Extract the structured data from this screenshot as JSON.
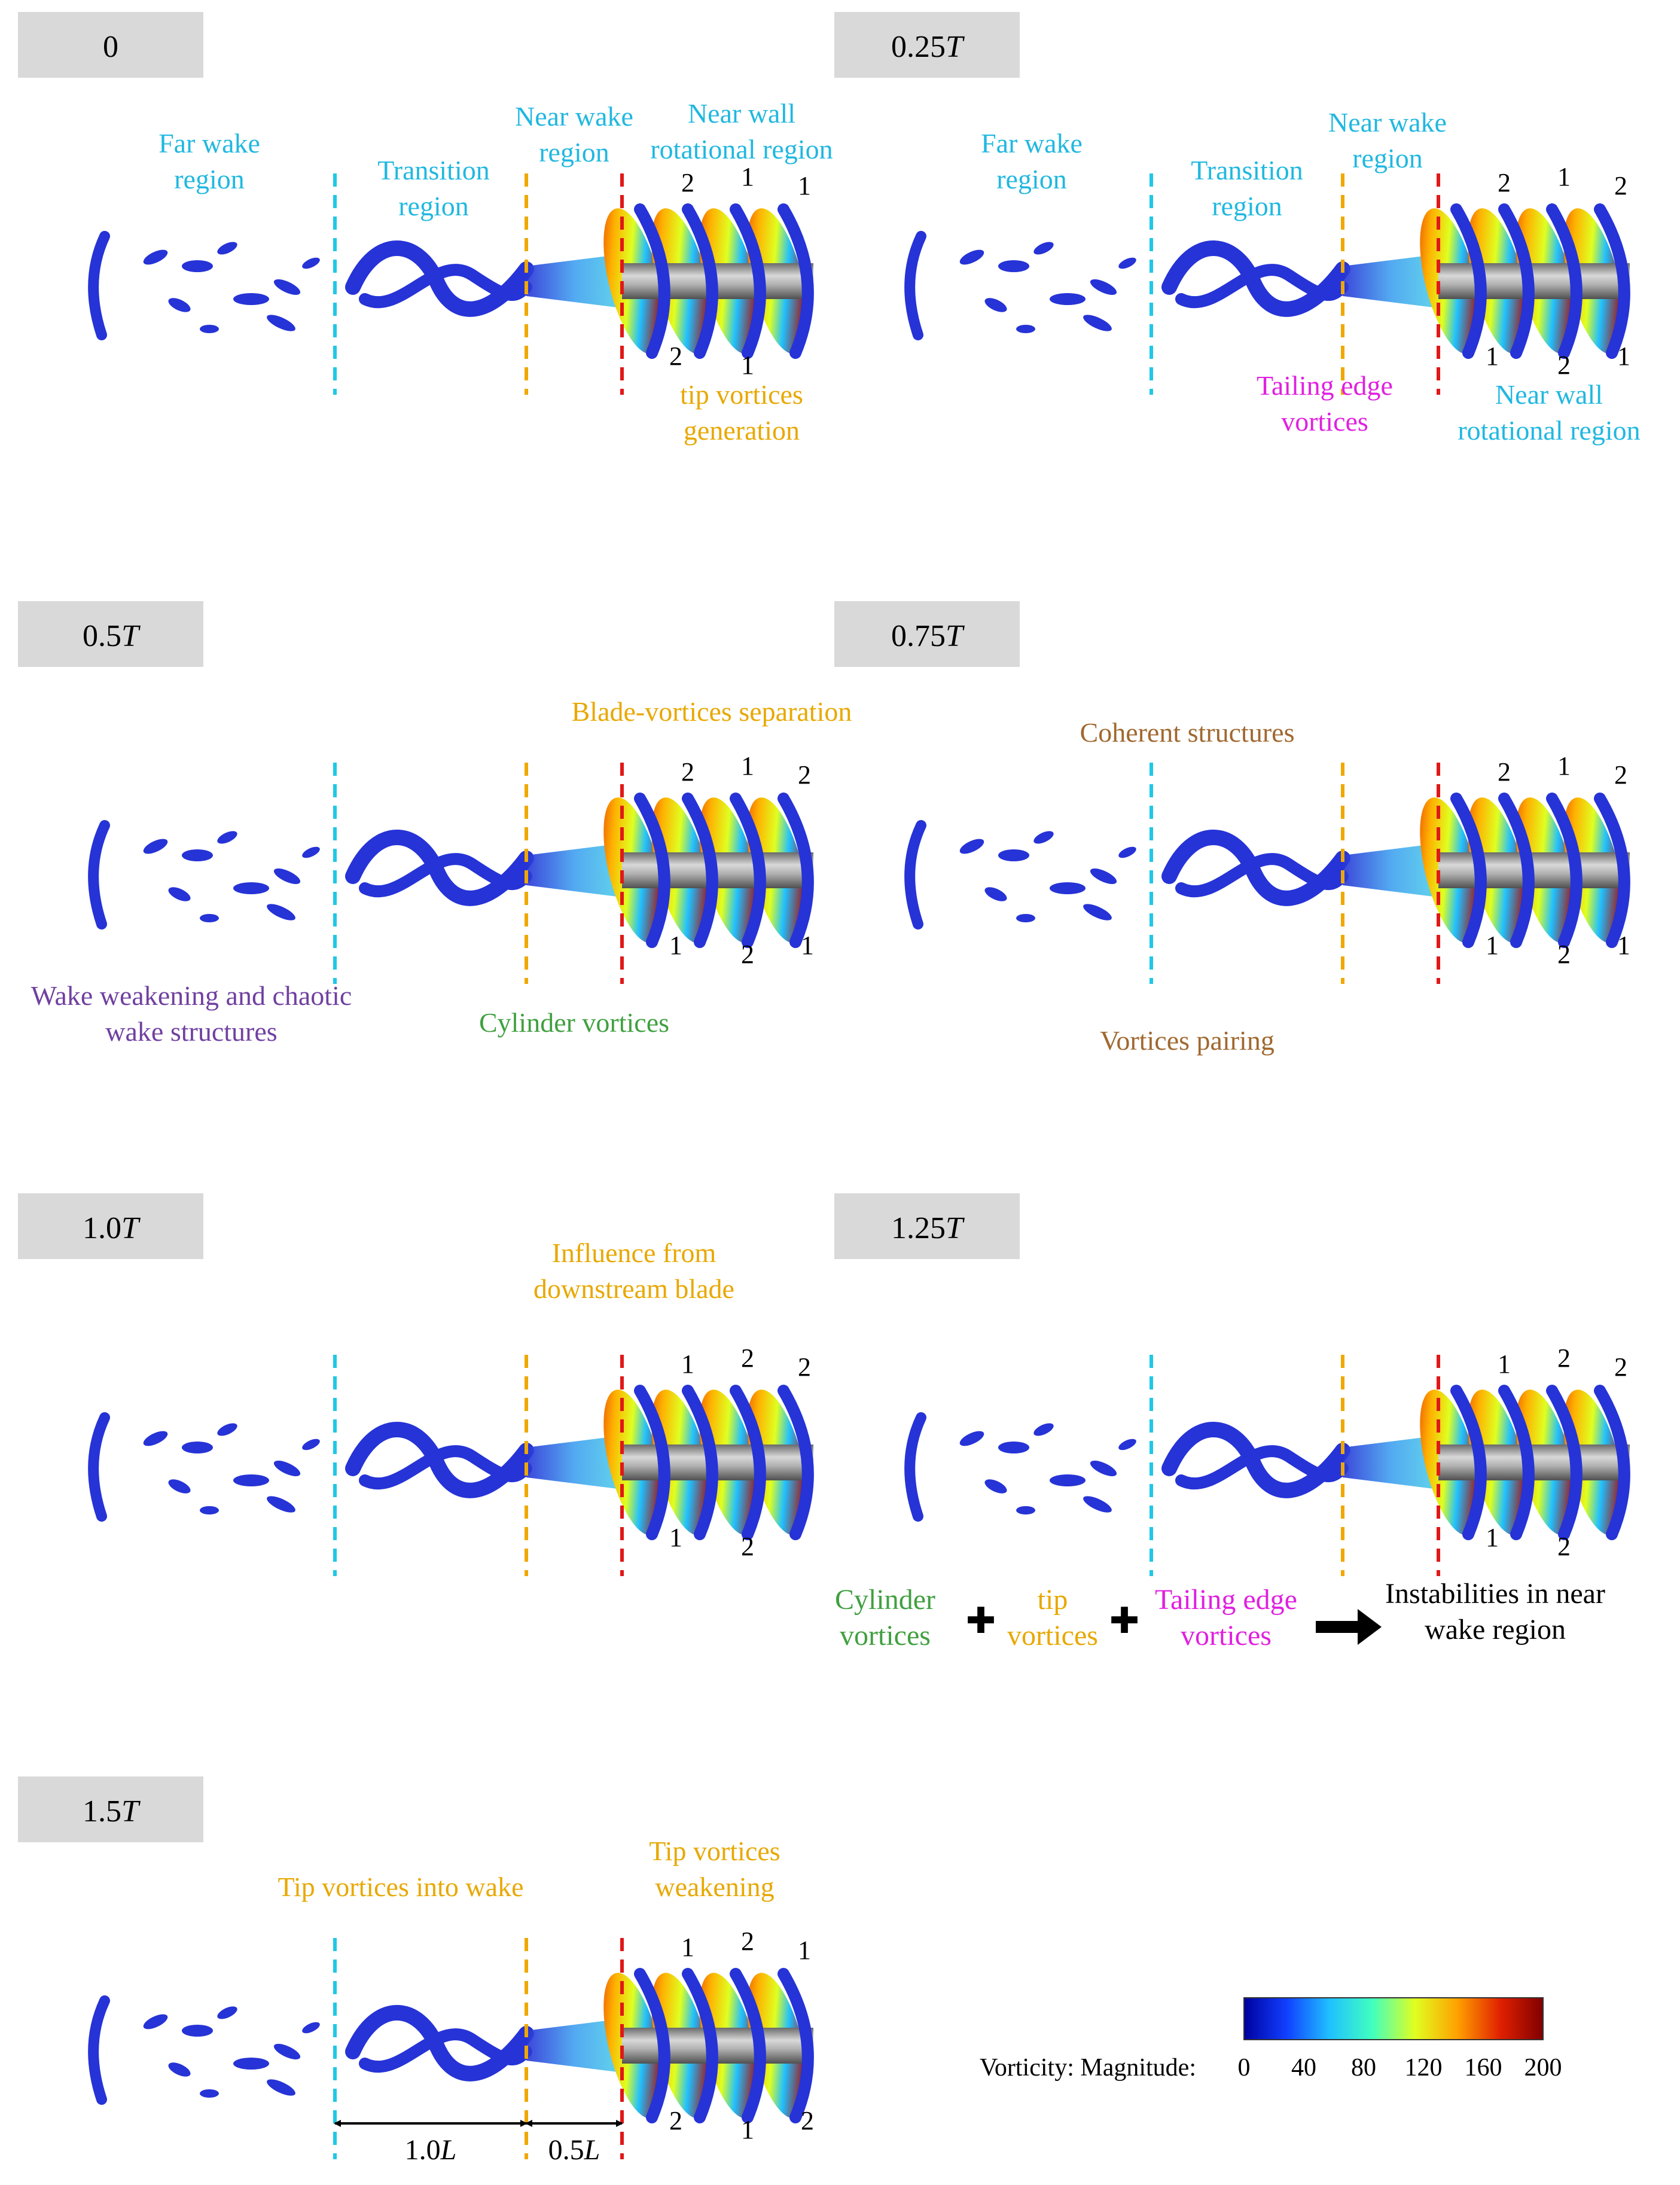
{
  "colors": {
    "cyan": "#1fc8e6",
    "orange": "#f0a800",
    "red": "#e01818",
    "label_cyan": "#20b8e0",
    "label_orange": "#e8a800",
    "magenta": "#e020e0",
    "purple": "#7040a0",
    "green": "#40a040",
    "brown": "#a06830",
    "black": "#000000",
    "tab_gray": "#d9d9d9",
    "vortex_blue": "#2633d6",
    "hub_gray": "#a8a8a8",
    "blade_red": "#a01818"
  },
  "panels": [
    {
      "id": "p0",
      "time_label": "0",
      "labels": [
        {
          "text": "Far wake",
          "color": "label_cyan"
        },
        {
          "text": "region",
          "color": "label_cyan"
        },
        {
          "text": "Transition",
          "color": "label_cyan"
        },
        {
          "text": "region",
          "color": "label_cyan"
        },
        {
          "text": "Near wake",
          "color": "label_cyan"
        },
        {
          "text": "region",
          "color": "label_cyan"
        },
        {
          "text": "Near wall",
          "color": "label_cyan"
        },
        {
          "text": "rotational region",
          "color": "label_cyan"
        },
        {
          "text": "tip vortices",
          "color": "label_orange"
        },
        {
          "text": "generation",
          "color": "label_orange"
        }
      ],
      "blade_numbers": [
        "2",
        "1",
        "1",
        "2",
        "1"
      ]
    },
    {
      "id": "p025",
      "time_label": "0.25",
      "time_unit": "T",
      "labels": [
        {
          "text": "Far wake",
          "color": "label_cyan"
        },
        {
          "text": "region",
          "color": "label_cyan"
        },
        {
          "text": "Transition",
          "color": "label_cyan"
        },
        {
          "text": "region",
          "color": "label_cyan"
        },
        {
          "text": "Near wake",
          "color": "label_cyan"
        },
        {
          "text": "region",
          "color": "label_cyan"
        },
        {
          "text": "Tailing edge",
          "color": "magenta"
        },
        {
          "text": "vortices",
          "color": "magenta"
        },
        {
          "text": "Near wall",
          "color": "label_cyan"
        },
        {
          "text": "rotational region",
          "color": "label_cyan"
        }
      ],
      "blade_numbers": [
        "2",
        "1",
        "2",
        "1",
        "2",
        "1"
      ]
    },
    {
      "id": "p05",
      "time_label": "0.5",
      "time_unit": "T",
      "labels": [
        {
          "text": "Blade-vortices separation",
          "color": "label_orange"
        },
        {
          "text": "Wake weakening and chaotic",
          "color": "purple"
        },
        {
          "text": "wake structures",
          "color": "purple"
        },
        {
          "text": "Cylinder vortices",
          "color": "green"
        }
      ],
      "blade_numbers": [
        "2",
        "1",
        "2",
        "1",
        "2",
        "1"
      ]
    },
    {
      "id": "p075",
      "time_label": "0.75",
      "time_unit": "T",
      "labels": [
        {
          "text": "Coherent structures",
          "color": "brown"
        },
        {
          "text": "Vortices pairing",
          "color": "brown"
        }
      ],
      "blade_numbers": [
        "2",
        "1",
        "2",
        "1",
        "2",
        "1"
      ]
    },
    {
      "id": "p10",
      "time_label": "1.0",
      "time_unit": "T",
      "labels": [
        {
          "text": "Influence from",
          "color": "label_orange"
        },
        {
          "text": "downstream blade",
          "color": "label_orange"
        }
      ],
      "blade_numbers": [
        "1",
        "2",
        "2",
        "1",
        "2"
      ]
    },
    {
      "id": "p125",
      "time_label": "1.25",
      "time_unit": "T",
      "labels": [],
      "blade_numbers": [
        "1",
        "2",
        "2",
        "1",
        "2"
      ]
    },
    {
      "id": "p15",
      "time_label": "1.5",
      "time_unit": "T",
      "labels": [
        {
          "text": "Tip vortices into wake",
          "color": "label_orange"
        },
        {
          "text": "Tip vortices",
          "color": "label_orange"
        },
        {
          "text": "weakening",
          "color": "label_orange"
        }
      ],
      "blade_numbers": [
        "1",
        "2",
        "1",
        "2",
        "1",
        "2"
      ]
    }
  ],
  "equation": {
    "term1_line1": "Cylinder",
    "term1_line2": "vortices",
    "term2_line1": "tip",
    "term2_line2": "vortices",
    "term3_line1": "Tailing edge",
    "term3_line2": "vortices",
    "result_line1": "Instabilities in near",
    "result_line2": "wake region",
    "plus_symbol": "✚"
  },
  "dimensions": {
    "d1_value": "1.0",
    "d1_unit": "L",
    "d2_value": "0.5",
    "d2_unit": "L"
  },
  "colorbar": {
    "title": "Vorticity: Magnitude:",
    "ticks": [
      "0",
      "40",
      "80",
      "120",
      "160",
      "200"
    ],
    "stops": [
      "#0000a0",
      "#1040ff",
      "#20c0ff",
      "#40ffc0",
      "#e0ff20",
      "#ffa000",
      "#e02000",
      "#800000"
    ]
  }
}
